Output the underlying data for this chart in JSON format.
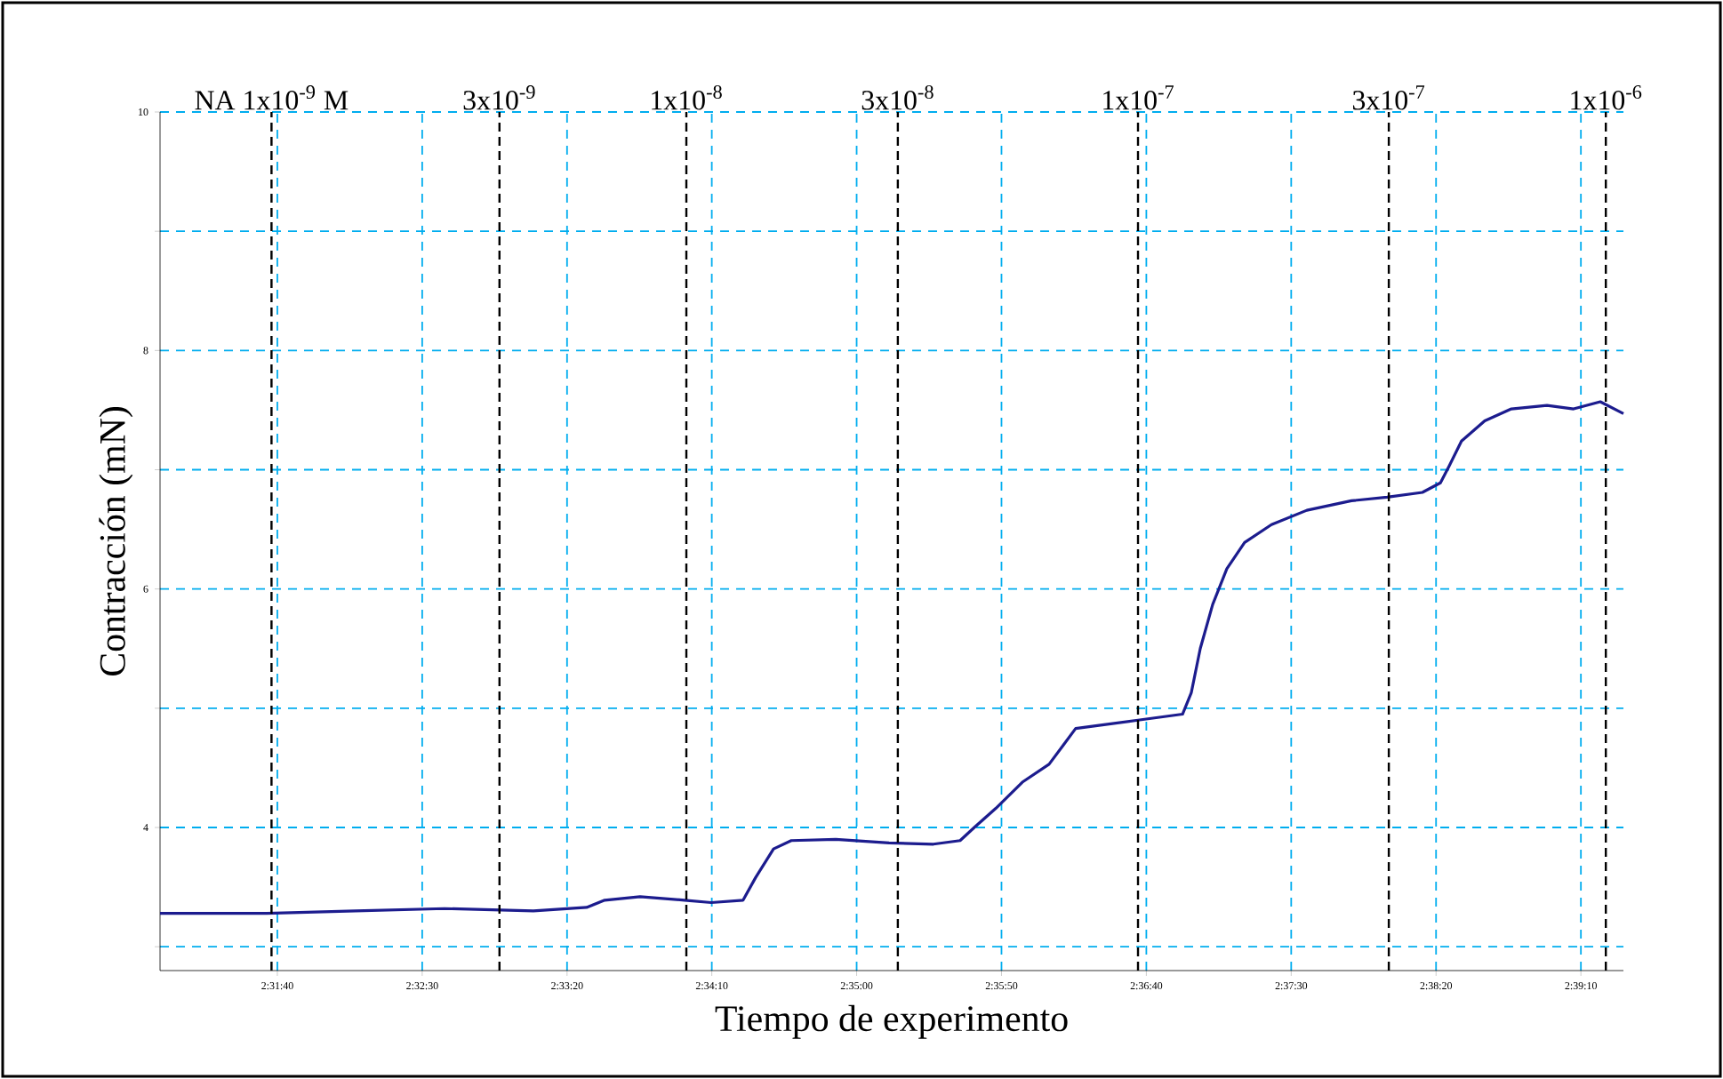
{
  "chart_data": {
    "type": "line",
    "xlabel": "Tiempo de experimento",
    "ylabel": "Contracción (mN)",
    "x": [
      2.51653,
      2.52675,
      2.53528,
      2.54381,
      2.55233,
      2.55744,
      2.55917,
      2.56256,
      2.56683,
      2.56939,
      2.57244,
      2.57364,
      2.57536,
      2.57706,
      2.58133,
      2.58644,
      2.59069,
      2.59325,
      2.59461,
      2.59667,
      2.59922,
      2.60178,
      2.60314,
      2.60433,
      2.60689,
      2.61031,
      2.61458,
      2.61542,
      2.61628,
      2.61747,
      2.61883,
      2.62053,
      2.62311,
      2.6265,
      2.63078,
      2.63419,
      2.63758,
      2.63931,
      2.64014,
      2.64133,
      2.64356,
      2.64611,
      2.64953,
      2.65208,
      2.65464,
      2.65686
    ],
    "series": [
      {
        "color": "#1c1c8e",
        "values": [
          3.28,
          3.28,
          3.3,
          3.32,
          3.3,
          3.33,
          3.39,
          3.42,
          3.39,
          3.37,
          3.39,
          3.58,
          3.82,
          3.89,
          3.9,
          3.87,
          3.86,
          3.89,
          4.0,
          4.16,
          4.38,
          4.53,
          4.69,
          4.83,
          4.86,
          4.9,
          4.95,
          5.13,
          5.5,
          5.87,
          6.17,
          6.39,
          6.54,
          6.66,
          6.74,
          6.77,
          6.81,
          6.89,
          7.03,
          7.24,
          7.41,
          7.51,
          7.54,
          7.51,
          7.57,
          7.47
        ]
      }
    ],
    "xlim": [
      2.51653,
      2.65686
    ],
    "xticks": [
      {
        "value": 2.52778,
        "label": "2:31:40"
      },
      {
        "value": 2.54167,
        "label": "2:32:30"
      },
      {
        "value": 2.55556,
        "label": "2:33:20"
      },
      {
        "value": 2.56944,
        "label": "2:34:10"
      },
      {
        "value": 2.58333,
        "label": "2:35:00"
      },
      {
        "value": 2.59722,
        "label": "2:35:50"
      },
      {
        "value": 2.61111,
        "label": "2:36:40"
      },
      {
        "value": 2.625,
        "label": "2:37:30"
      },
      {
        "value": 2.63889,
        "label": "2:38:20"
      },
      {
        "value": 2.65278,
        "label": "2:39:10"
      }
    ],
    "ylim": [
      2.8,
      10
    ],
    "yticks": [
      {
        "value": 3,
        "label": null
      },
      4,
      {
        "value": 5,
        "label": null
      },
      6,
      {
        "value": 7,
        "label": null
      },
      8,
      {
        "value": 9,
        "label": null
      },
      10
    ],
    "grid": true,
    "ref_lines": [
      {
        "axis": "x",
        "value": 2.52722,
        "label": "NA 1x10$^{-9}$ M",
        "color": "#000000",
        "line_style": "dashed"
      },
      {
        "axis": "x",
        "value": 2.54908,
        "label": "3x10$^{-9}$",
        "color": "#000000",
        "line_style": "dashed"
      },
      {
        "axis": "x",
        "value": 2.567,
        "label": "1x10$^{-8}$",
        "color": "#000000",
        "line_style": "dashed"
      },
      {
        "axis": "x",
        "value": 2.58728,
        "label": "3x10$^{-8}$",
        "color": "#000000",
        "line_style": "dashed"
      },
      {
        "axis": "x",
        "value": 2.61031,
        "label": "1x10$^{-7}$",
        "color": "#000000",
        "line_style": "dashed"
      },
      {
        "axis": "x",
        "value": 2.63436,
        "label": "3x10$^{-7}$",
        "color": "#000000",
        "line_style": "dashed"
      },
      {
        "axis": "x",
        "value": 2.65517,
        "label": "1x10$^{-6}$",
        "color": "#000000",
        "line_style": "dashed"
      }
    ]
  }
}
